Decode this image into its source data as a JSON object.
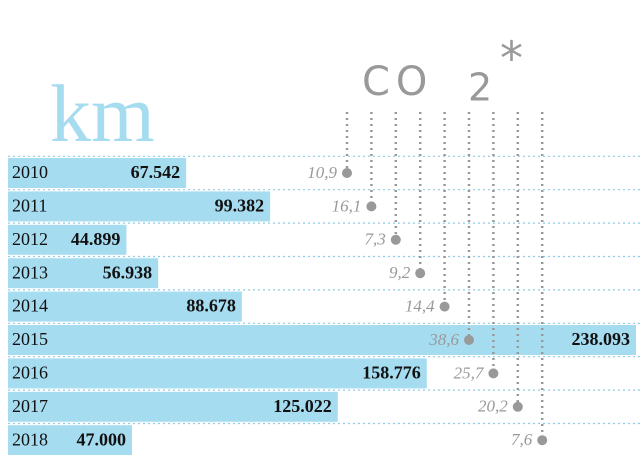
{
  "chart_data": {
    "type": "bar",
    "orientation": "horizontal",
    "axis_label": "km",
    "categories": [
      "2010",
      "2011",
      "2012",
      "2013",
      "2014",
      "2015",
      "2016",
      "2017",
      "2018"
    ],
    "values": [
      67542,
      99382,
      44899,
      56938,
      88678,
      238093,
      158776,
      125022,
      47000
    ],
    "value_labels": [
      "67.542",
      "99.382",
      "44.899",
      "56.938",
      "88.678",
      "238.093",
      "158.776",
      "125.022",
      "47.000"
    ],
    "color": "#a6dcf0",
    "xlim": [
      0,
      240000
    ],
    "co2": {
      "label": "CO",
      "subscript": "2",
      "mark": "*",
      "values": [
        10.9,
        16.1,
        7.3,
        9.2,
        14.4,
        38.6,
        25.7,
        20.2,
        7.6
      ],
      "value_labels": [
        "10,9",
        "16,1",
        "7,3",
        "9,2",
        "14,4",
        "38,6",
        "25,7",
        "20,2",
        "7,6"
      ],
      "color": "#999999"
    }
  }
}
